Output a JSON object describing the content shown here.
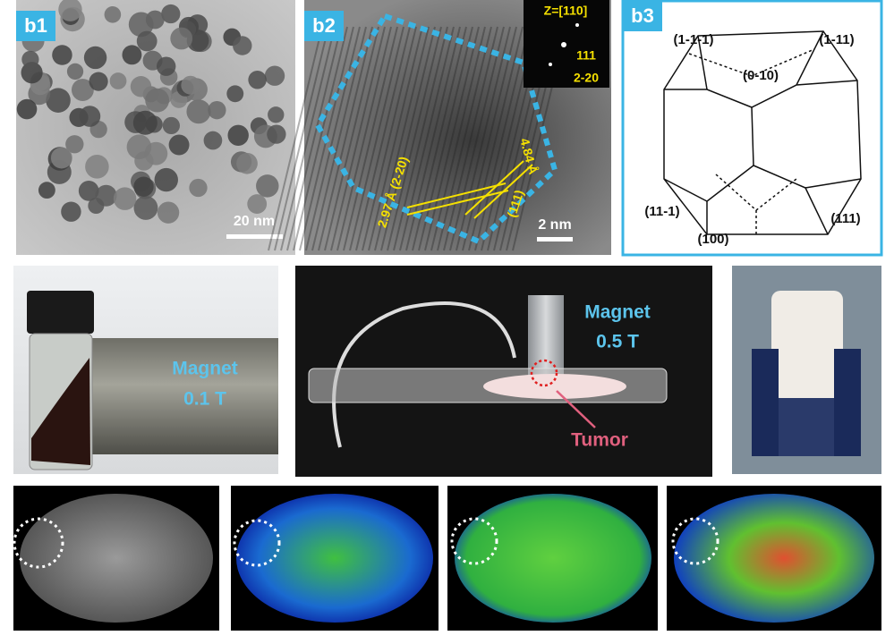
{
  "panels": {
    "b1": {
      "label": "b1",
      "scale_bar": "20 nm"
    },
    "b2": {
      "label": "b2",
      "zone_axis": "Z=[110]",
      "fft_spots": [
        "111",
        "2-20"
      ],
      "spacing_1": "2.97 Å (2-20)",
      "spacing_2": "4.84 Å",
      "plane_2": "(111)",
      "scale_bar": "2 nm"
    },
    "b3": {
      "label": "b3",
      "facets": [
        "(1-1-1)",
        "(1-11)",
        "(0-10)",
        "(11-1)",
        "(111)",
        "(100)"
      ]
    }
  },
  "photos": {
    "vial": {
      "magnet": "Magnet",
      "field": "0.1 T"
    },
    "setup": {
      "magnet": "Magnet",
      "field": "0.5 T",
      "target": "Tumor"
    }
  }
}
